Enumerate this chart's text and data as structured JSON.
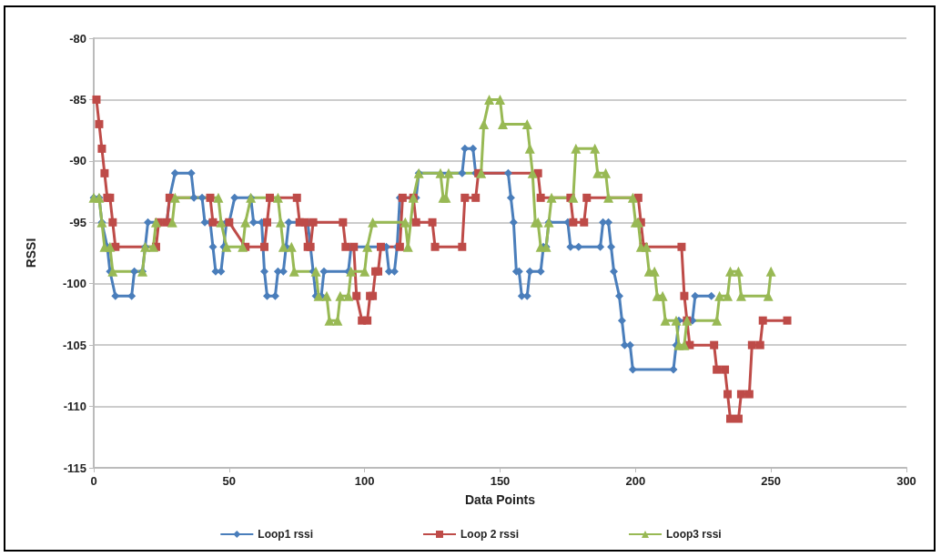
{
  "chart_data": {
    "type": "line",
    "xlabel": "Data Points",
    "ylabel": "RSSI",
    "xlim": [
      0,
      300
    ],
    "xticks": [
      0,
      50,
      100,
      150,
      200,
      250,
      300
    ],
    "ylim": [
      -115,
      -80
    ],
    "yticks": [
      -115,
      -110,
      -105,
      -100,
      -95,
      -90,
      -85,
      -80
    ],
    "grid": "y",
    "legend": "bottom",
    "line_style": "solid",
    "series": [
      {
        "name": "Loop1 rssi",
        "color": "#4a7ebb",
        "marker": "diamond",
        "x": [
          0,
          2,
          3,
          5,
          6,
          8,
          14,
          15,
          18,
          19,
          20,
          27,
          28,
          30,
          36,
          37,
          40,
          41,
          43,
          44,
          45,
          47,
          48,
          49,
          50,
          52,
          58,
          59,
          62,
          63,
          64,
          67,
          68,
          70,
          71,
          72,
          79,
          80,
          81,
          82,
          84,
          85,
          94,
          95,
          108,
          109,
          111,
          112,
          113,
          119,
          120,
          136,
          137,
          140,
          141,
          153,
          154,
          155,
          156,
          157,
          158,
          160,
          161,
          165,
          166,
          167,
          168,
          175,
          176,
          179,
          187,
          188,
          190,
          191,
          192,
          194,
          195,
          196,
          198,
          199,
          214,
          215,
          216,
          221,
          222,
          228
        ],
        "values": [
          -93,
          -93,
          -95,
          -97,
          -99,
          -101,
          -101,
          -99,
          -99,
          -97,
          -95,
          -95,
          -93,
          -91,
          -91,
          -93,
          -93,
          -95,
          -95,
          -97,
          -99,
          -99,
          -97,
          -95,
          -95,
          -93,
          -93,
          -95,
          -95,
          -99,
          -101,
          -101,
          -99,
          -99,
          -97,
          -95,
          -95,
          -97,
          -99,
          -101,
          -101,
          -99,
          -99,
          -97,
          -97,
          -99,
          -99,
          -97,
          -93,
          -93,
          -91,
          -91,
          -89,
          -89,
          -91,
          -91,
          -93,
          -95,
          -99,
          -99,
          -101,
          -101,
          -99,
          -99,
          -97,
          -97,
          -95,
          -95,
          -97,
          -97,
          -97,
          -95,
          -95,
          -97,
          -99,
          -101,
          -103,
          -105,
          -105,
          -107,
          -107,
          -105,
          -103,
          -103,
          -101,
          -101
        ]
      },
      {
        "name": "Loop 2 rssi",
        "color": "#be4b48",
        "marker": "square",
        "x": [
          1,
          2,
          3,
          4,
          5,
          6,
          7,
          8,
          23,
          24,
          27,
          28,
          43,
          44,
          50,
          56,
          63,
          64,
          65,
          75,
          76,
          78,
          79,
          80,
          81,
          92,
          93,
          96,
          97,
          99,
          101,
          102,
          103,
          104,
          105,
          106,
          113,
          114,
          118,
          119,
          125,
          126,
          136,
          137,
          141,
          142,
          164,
          165,
          176,
          177,
          181,
          182,
          201,
          202,
          203,
          217,
          218,
          219,
          220,
          229,
          230,
          233,
          234,
          235,
          238,
          239,
          242,
          243,
          246,
          247,
          256
        ],
        "values": [
          -85,
          -87,
          -89,
          -91,
          -93,
          -93,
          -95,
          -97,
          -97,
          -95,
          -95,
          -93,
          -93,
          -95,
          -95,
          -97,
          -97,
          -95,
          -93,
          -93,
          -95,
          -95,
          -97,
          -97,
          -95,
          -95,
          -97,
          -97,
          -101,
          -103,
          -103,
          -101,
          -101,
          -99,
          -99,
          -97,
          -97,
          -93,
          -93,
          -95,
          -95,
          -97,
          -97,
          -93,
          -93,
          -91,
          -91,
          -93,
          -93,
          -95,
          -95,
          -93,
          -93,
          -95,
          -97,
          -97,
          -101,
          -103,
          -105,
          -105,
          -107,
          -107,
          -109,
          -111,
          -111,
          -109,
          -109,
          -105,
          -105,
          -103,
          -103
        ]
      },
      {
        "name": "Loop3 rssi",
        "color": "#98b954",
        "marker": "triangle",
        "x": [
          0,
          2,
          3,
          4,
          6,
          7,
          18,
          19,
          22,
          23,
          29,
          30,
          46,
          47,
          49,
          55,
          56,
          58,
          68,
          69,
          70,
          73,
          74,
          82,
          83,
          86,
          87,
          90,
          91,
          94,
          95,
          100,
          101,
          103,
          115,
          116,
          118,
          120,
          128,
          129,
          130,
          131,
          143,
          144,
          146,
          150,
          151,
          160,
          161,
          162,
          163,
          164,
          165,
          167,
          168,
          169,
          177,
          178,
          185,
          186,
          189,
          190,
          199,
          200,
          201,
          202,
          204,
          205,
          207,
          208,
          210,
          211,
          215,
          216,
          218,
          219,
          230,
          231,
          234,
          235,
          238,
          239,
          249,
          250
        ],
        "values": [
          -93,
          -93,
          -95,
          -97,
          -97,
          -99,
          -99,
          -97,
          -97,
          -95,
          -95,
          -93,
          -93,
          -95,
          -97,
          -97,
          -95,
          -93,
          -93,
          -95,
          -97,
          -97,
          -99,
          -99,
          -101,
          -101,
          -103,
          -103,
          -101,
          -101,
          -99,
          -99,
          -97,
          -95,
          -95,
          -97,
          -93,
          -91,
          -91,
          -93,
          -93,
          -91,
          -91,
          -87,
          -85,
          -85,
          -87,
          -87,
          -89,
          -91,
          -95,
          -95,
          -97,
          -97,
          -95,
          -93,
          -93,
          -89,
          -89,
          -91,
          -91,
          -93,
          -93,
          -95,
          -95,
          -97,
          -97,
          -99,
          -99,
          -101,
          -101,
          -103,
          -103,
          -105,
          -105,
          -103,
          -103,
          -101,
          -101,
          -99,
          -99,
          -101,
          -101,
          -99
        ]
      }
    ]
  }
}
